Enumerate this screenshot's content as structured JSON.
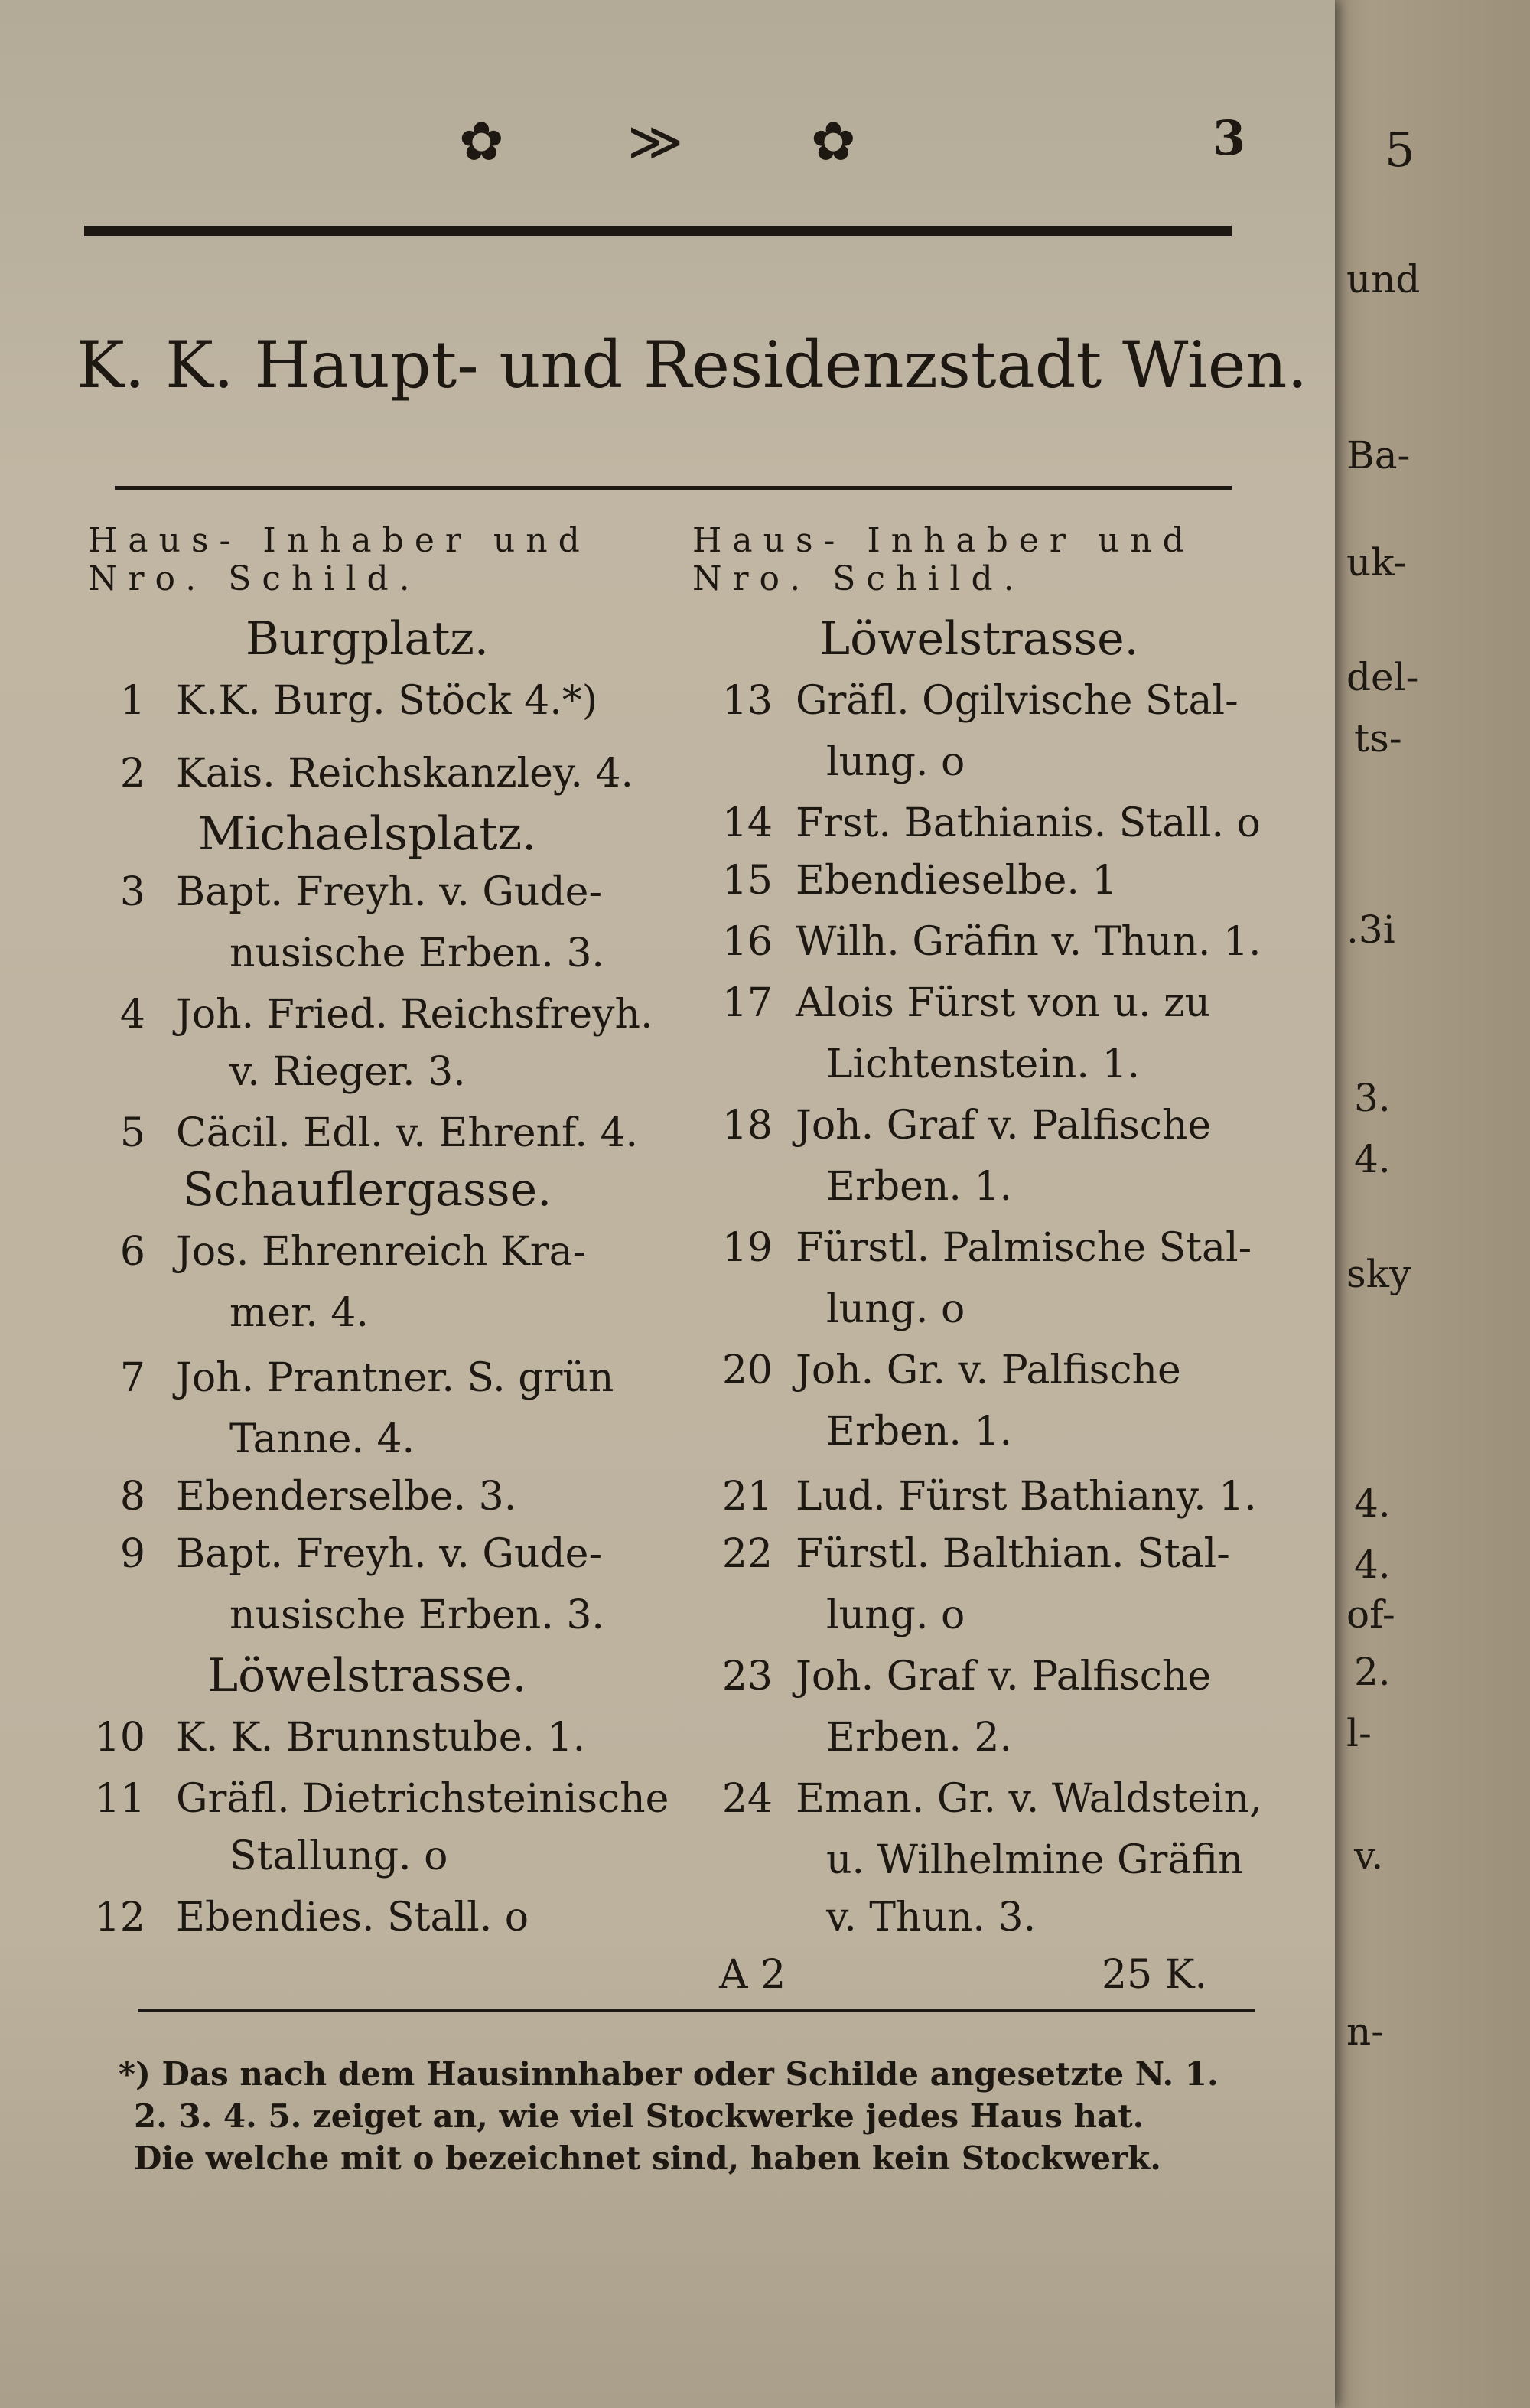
{
  "page_number": "3",
  "ornaments": [
    "✿",
    "≫",
    "✿"
  ],
  "title": "K. K. Haupt- und Residenzstadt Wien.",
  "column_header": {
    "line1": "Haus- Inhaber und",
    "line2": "Nro. Schild."
  },
  "left_column": {
    "streets": [
      "Burgplatz.",
      "Michaelsplatz.",
      "Schauflergasse.",
      "Löwelstrasse."
    ],
    "entries": [
      {
        "no": "1",
        "lines": [
          "K.K. Burg. Stöck 4.*)"
        ]
      },
      {
        "no": "2",
        "lines": [
          "Kais. Reichskanzley. 4."
        ]
      },
      {
        "no": "3",
        "lines": [
          "Bapt. Freyh. v. Gude-",
          "nusische Erben. 3."
        ]
      },
      {
        "no": "4",
        "lines": [
          "Joh. Fried. Reichsfreyh.",
          "v. Rieger. 3."
        ]
      },
      {
        "no": "5",
        "lines": [
          "Cäcil. Edl. v. Ehrenf. 4."
        ]
      },
      {
        "no": "6",
        "lines": [
          "Jos. Ehrenreich Kra-",
          "mer. 4."
        ]
      },
      {
        "no": "7",
        "lines": [
          "Joh. Prantner. S. grün",
          "Tanne. 4."
        ]
      },
      {
        "no": "8",
        "lines": [
          "Ebenderselbe. 3."
        ]
      },
      {
        "no": "9",
        "lines": [
          "Bapt. Freyh. v. Gude-",
          "nusische Erben. 3."
        ]
      },
      {
        "no": "10",
        "lines": [
          "K. K. Brunnstube. 1."
        ]
      },
      {
        "no": "11",
        "lines": [
          "Gräfl. Dietrichsteinische",
          "Stallung. o"
        ]
      },
      {
        "no": "12",
        "lines": [
          "Ebendies. Stall. o"
        ]
      }
    ]
  },
  "right_column": {
    "streets": [
      "Löwelstrasse."
    ],
    "entries": [
      {
        "no": "13",
        "lines": [
          "Gräfl. Ogilvische Stal-",
          "lung. o"
        ]
      },
      {
        "no": "14",
        "lines": [
          "Frst. Bathianis. Stall. o"
        ]
      },
      {
        "no": "15",
        "lines": [
          "Ebendieselbe. 1"
        ]
      },
      {
        "no": "16",
        "lines": [
          "Wilh. Gräfin v. Thun. 1."
        ]
      },
      {
        "no": "17",
        "lines": [
          "Alois Fürst von u. zu",
          "Lichtenstein. 1."
        ]
      },
      {
        "no": "18",
        "lines": [
          "Joh. Graf v. Palfische",
          "Erben. 1."
        ]
      },
      {
        "no": "19",
        "lines": [
          "Fürstl. Palmische Stal-",
          "lung. o"
        ]
      },
      {
        "no": "20",
        "lines": [
          "Joh. Gr. v. Palfische",
          "Erben. 1."
        ]
      },
      {
        "no": "21",
        "lines": [
          "Lud. Fürst Bathiany. 1."
        ]
      },
      {
        "no": "22",
        "lines": [
          "Fürstl. Balthian. Stal-",
          "lung. o"
        ]
      },
      {
        "no": "23",
        "lines": [
          "Joh. Graf v. Palfische",
          "Erben. 2."
        ]
      },
      {
        "no": "24",
        "lines": [
          "Eman. Gr. v. Waldstein,",
          "u. Wilhelmine Gräfin",
          "v. Thun. 3."
        ]
      }
    ]
  },
  "signature": "A 2",
  "catchword": "25 K.",
  "footnote": [
    "*) Das nach dem Hausinnhaber oder Schilde angesetzte N. 1.",
    "2. 3. 4. 5. zeiget an, wie viel Stockwerke jedes Haus hat.",
    "Die welche mit o bezeichnet sind, haben kein Stockwerk."
  ],
  "facing_page": {
    "page_number": "5",
    "fragments": [
      "und",
      "Ba-",
      "uk-",
      "del-",
      "ts-",
      ".3i",
      "3.",
      "4.",
      "sky",
      "4.",
      "4.",
      "of-",
      "2.",
      "l-",
      "v.",
      "n-"
    ]
  }
}
